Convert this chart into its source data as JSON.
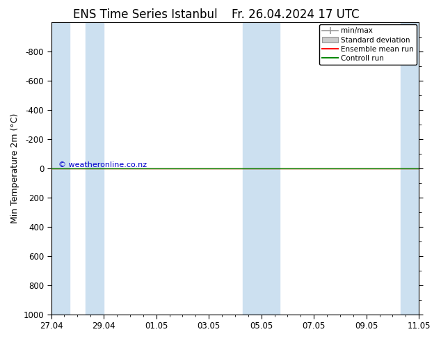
{
  "title_left": "ENS Time Series Istanbul",
  "title_right": "Fr. 26.04.2024 17 UTC",
  "ylabel": "Min Temperature 2m (°C)",
  "watermark": "© weatheronline.co.nz",
  "ylim_bottom": 1000,
  "ylim_top": -1000,
  "yticks": [
    -800,
    -600,
    -400,
    -200,
    0,
    200,
    400,
    600,
    800,
    1000
  ],
  "x_start": 0,
  "x_end": 14,
  "xtick_labels": [
    "27.04",
    "29.04",
    "01.05",
    "03.05",
    "05.05",
    "07.05",
    "09.05",
    "11.05"
  ],
  "xtick_positions": [
    0,
    2,
    4,
    6,
    8,
    10,
    12,
    14
  ],
  "shaded_columns": [
    {
      "x_start": 0.0,
      "x_end": 0.7
    },
    {
      "x_start": 1.3,
      "x_end": 2.0
    },
    {
      "x_start": 7.3,
      "x_end": 8.0
    },
    {
      "x_start": 8.0,
      "x_end": 8.7
    },
    {
      "x_start": 13.3,
      "x_end": 14.0
    }
  ],
  "shade_color": "#cce0f0",
  "ensemble_mean_color": "#ff0000",
  "control_run_color": "#008800",
  "minmax_color": "#999999",
  "std_dev_color": "#cccccc",
  "line_y": 0,
  "background_color": "#ffffff",
  "legend_items": [
    "min/max",
    "Standard deviation",
    "Ensemble mean run",
    "Controll run"
  ],
  "title_fontsize": 12,
  "axis_fontsize": 9,
  "tick_fontsize": 8.5,
  "watermark_color": "#0000cc"
}
